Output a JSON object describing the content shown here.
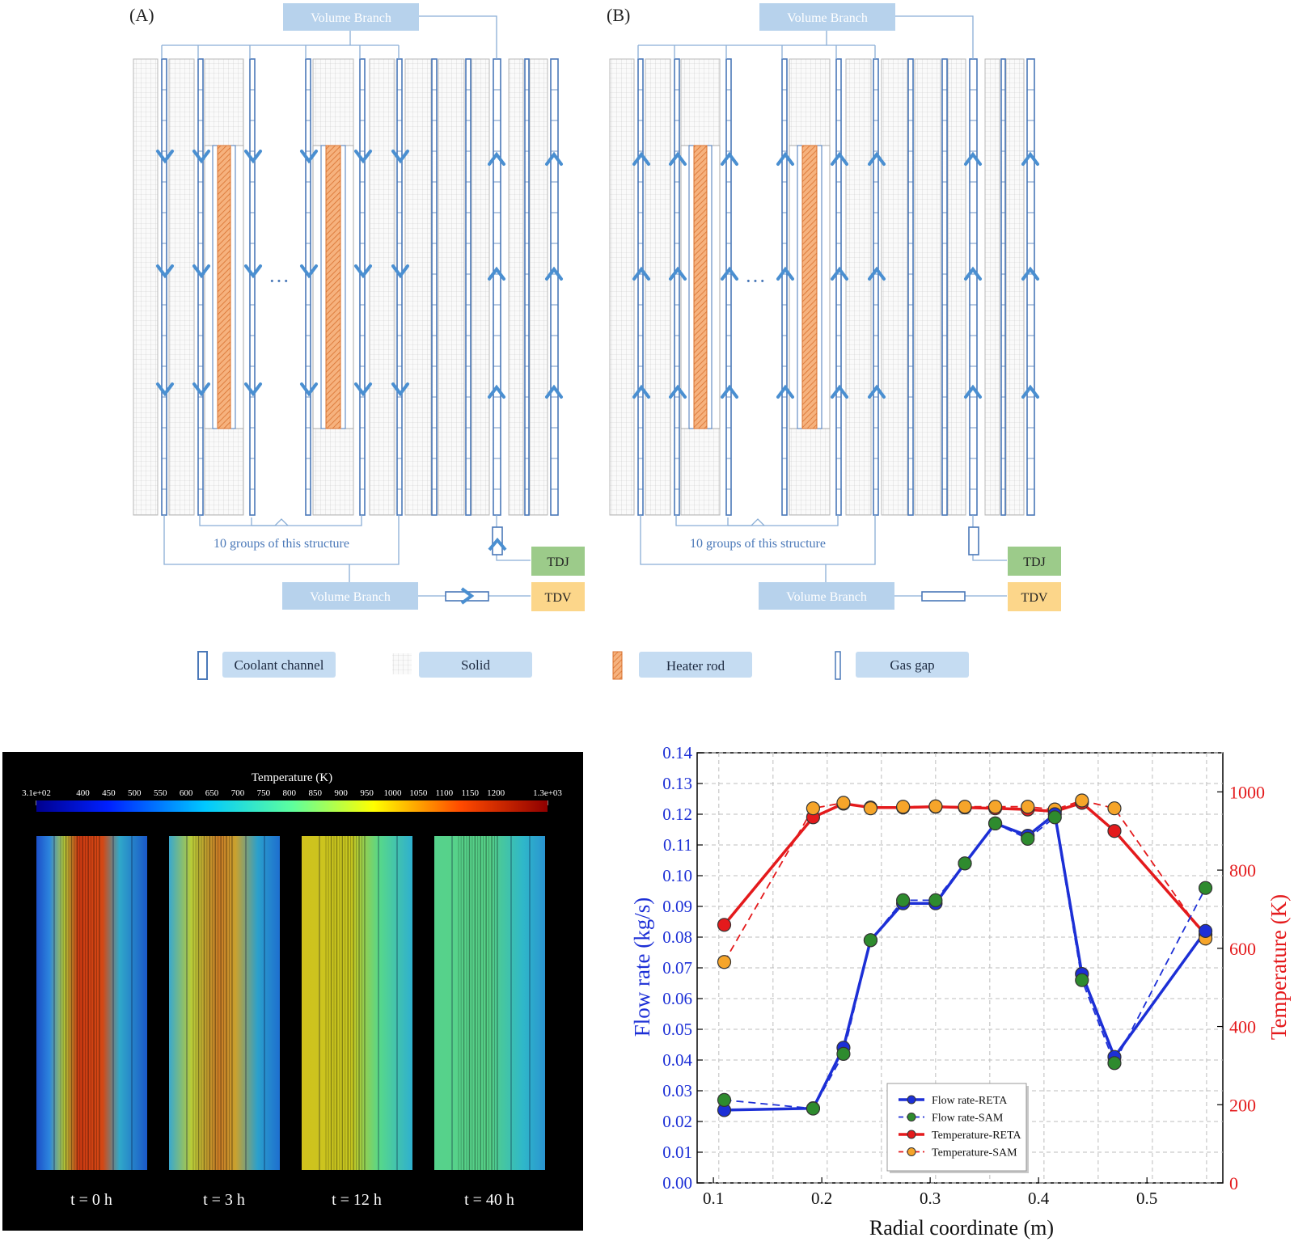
{
  "panel_a": {
    "label": "(A)"
  },
  "panel_b": {
    "label": "(B)"
  },
  "schematic": {
    "volume_branch_top": "Volume Branch",
    "volume_branch_bottom": "Volume Branch",
    "group_label": "10 groups of this structure",
    "ellipsis": "···",
    "tdj": "TDJ",
    "tdv": "TDV"
  },
  "legend": {
    "items": [
      {
        "key": "coolant",
        "label": "Coolant channel"
      },
      {
        "key": "solid",
        "label": "Solid"
      },
      {
        "key": "heater",
        "label": "Heater rod"
      },
      {
        "key": "gasgap",
        "label": "Gas gap"
      }
    ]
  },
  "contour": {
    "title": "Temperature (K)",
    "ticks": [
      "3.1e+02",
      "400",
      "450",
      "500",
      "550",
      "600",
      "650",
      "700",
      "750",
      "800",
      "850",
      "900",
      "950",
      "1000",
      "1050",
      "1100",
      "1150",
      "1200",
      "1.3e+03"
    ],
    "times": [
      "t = 0 h",
      "t = 3 h",
      "t = 12 h",
      "t = 40 h"
    ]
  },
  "colors": {
    "schematic_blue": "#4a78b8",
    "box_blue": "#b7d2ec",
    "tdj_green": "#9ccb8a",
    "tdv_orange": "#fcd68a",
    "heater_orange": "#e0894a",
    "flow_blue": "#1c2fd6",
    "temp_red": "#e41a1c",
    "sam_green": "#2e8b2e",
    "sam_orange": "#f6a52a"
  },
  "chart_data": {
    "type": "line",
    "xlabel": "Radial coordinate (m)",
    "ylabel": "Flow rate (kg/s)",
    "y2label": "Temperature (K)",
    "xlim": [
      0.085,
      0.57
    ],
    "ylim": [
      0.0,
      0.14
    ],
    "y2lim": [
      0,
      1100
    ],
    "xticks": [
      "0.1",
      "0.2",
      "0.3",
      "0.4",
      "0.5"
    ],
    "yticks": [
      "0.00",
      "0.01",
      "0.02",
      "0.03",
      "0.04",
      "0.05",
      "0.06",
      "0.07",
      "0.08",
      "0.09",
      "0.10",
      "0.11",
      "0.12",
      "0.13",
      "0.14"
    ],
    "y2ticks": [
      "0",
      "200",
      "400",
      "600",
      "800",
      "1000"
    ],
    "legend_position": "bottom-center",
    "series": [
      {
        "name": "Flow rate-RETA",
        "axis": "left",
        "x": [
          0.11,
          0.192,
          0.22,
          0.245,
          0.275,
          0.305,
          0.332,
          0.36,
          0.39,
          0.415,
          0.44,
          0.47,
          0.554
        ],
        "values": [
          0.0237,
          0.0243,
          0.044,
          0.079,
          0.091,
          0.091,
          0.104,
          0.117,
          0.113,
          0.12,
          0.068,
          0.041,
          0.082
        ]
      },
      {
        "name": "Flow rate-SAM",
        "axis": "left",
        "x": [
          0.11,
          0.192,
          0.22,
          0.245,
          0.275,
          0.305,
          0.332,
          0.36,
          0.39,
          0.415,
          0.44,
          0.47,
          0.554
        ],
        "values": [
          0.027,
          0.0242,
          0.042,
          0.079,
          0.092,
          0.092,
          0.104,
          0.117,
          0.112,
          0.119,
          0.066,
          0.039,
          0.096
        ]
      },
      {
        "name": "Temperature-RETA",
        "axis": "right",
        "x": [
          0.11,
          0.192,
          0.22,
          0.245,
          0.275,
          0.305,
          0.332,
          0.36,
          0.39,
          0.415,
          0.44,
          0.47,
          0.554
        ],
        "values": [
          660,
          935,
          970,
          960,
          960,
          962,
          960,
          958,
          955,
          950,
          972,
          900,
          635
        ]
      },
      {
        "name": "Temperature-SAM",
        "axis": "right",
        "x": [
          0.11,
          0.192,
          0.22,
          0.245,
          0.275,
          0.305,
          0.332,
          0.36,
          0.39,
          0.415,
          0.44,
          0.47,
          0.554
        ],
        "values": [
          565,
          958,
          972,
          958,
          962,
          963,
          962,
          962,
          962,
          955,
          978,
          958,
          625
        ]
      }
    ]
  }
}
